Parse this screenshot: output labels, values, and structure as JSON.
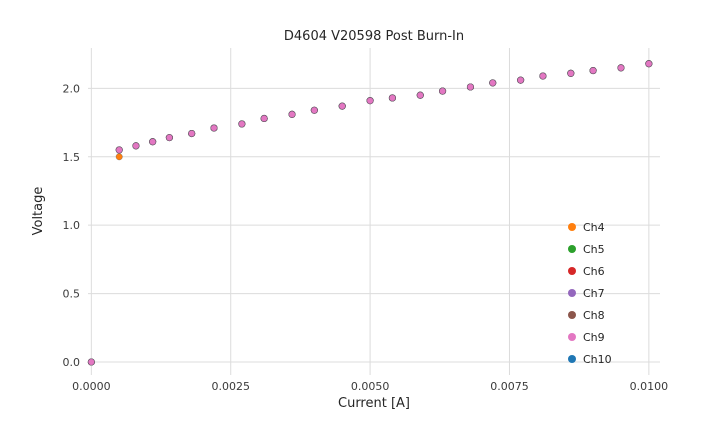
{
  "chart_data": {
    "type": "scatter",
    "title": "D4604 V20598 Post Burn-In",
    "xlabel": "Current [A]",
    "ylabel": "Voltage",
    "xlim": [
      -6e-05,
      0.0102
    ],
    "ylim": [
      -0.095,
      2.295
    ],
    "grid": true,
    "grid_color": "#dcdcdc",
    "legend_position": "lower right",
    "xticks": {
      "values": [
        0.0,
        0.0025,
        0.005,
        0.0075,
        0.01
      ],
      "labels": [
        "0.0000",
        "0.0025",
        "0.0050",
        "0.0075",
        "0.0100"
      ]
    },
    "yticks": {
      "values": [
        0.0,
        0.5,
        1.0,
        1.5,
        2.0
      ],
      "labels": [
        "0.0",
        "0.5",
        "1.0",
        "1.5",
        "2.0"
      ]
    },
    "x": [
      0.0,
      0.0005,
      0.0008,
      0.0011,
      0.0014,
      0.0018,
      0.0022,
      0.0027,
      0.0031,
      0.0036,
      0.004,
      0.0045,
      0.005,
      0.0054,
      0.0059,
      0.0063,
      0.0068,
      0.0072,
      0.0077,
      0.0081,
      0.0086,
      0.009,
      0.0095,
      0.01
    ],
    "base_y": [
      0.0,
      1.55,
      1.58,
      1.61,
      1.64,
      1.67,
      1.71,
      1.74,
      1.78,
      1.81,
      1.84,
      1.87,
      1.91,
      1.93,
      1.95,
      1.98,
      2.01,
      2.04,
      2.06,
      2.09,
      2.11,
      2.13,
      2.15,
      2.18
    ],
    "series": [
      {
        "name": "Ch4",
        "color": "#ff7f0e",
        "y": [
          0.0,
          1.5,
          1.58,
          1.61,
          1.64,
          1.67,
          1.71,
          1.74,
          1.78,
          1.81,
          1.84,
          1.87,
          1.91,
          1.93,
          1.95,
          1.98,
          2.01,
          2.04,
          2.06,
          2.09,
          2.11,
          2.13,
          2.15,
          2.18
        ]
      },
      {
        "name": "Ch5",
        "color": "#2ca02c"
      },
      {
        "name": "Ch6",
        "color": "#d62728"
      },
      {
        "name": "Ch7",
        "color": "#9467bd"
      },
      {
        "name": "Ch8",
        "color": "#8c564b"
      },
      {
        "name": "Ch10",
        "color": "#1f77b4"
      },
      {
        "name": "Ch9",
        "color": "#e377c2"
      }
    ],
    "legend": [
      {
        "label": "Ch4",
        "color": "#ff7f0e"
      },
      {
        "label": "Ch5",
        "color": "#2ca02c"
      },
      {
        "label": "Ch6",
        "color": "#d62728"
      },
      {
        "label": "Ch7",
        "color": "#9467bd"
      },
      {
        "label": "Ch8",
        "color": "#8c564b"
      },
      {
        "label": "Ch9",
        "color": "#e377c2"
      },
      {
        "label": "Ch10",
        "color": "#1f77b4"
      }
    ]
  }
}
